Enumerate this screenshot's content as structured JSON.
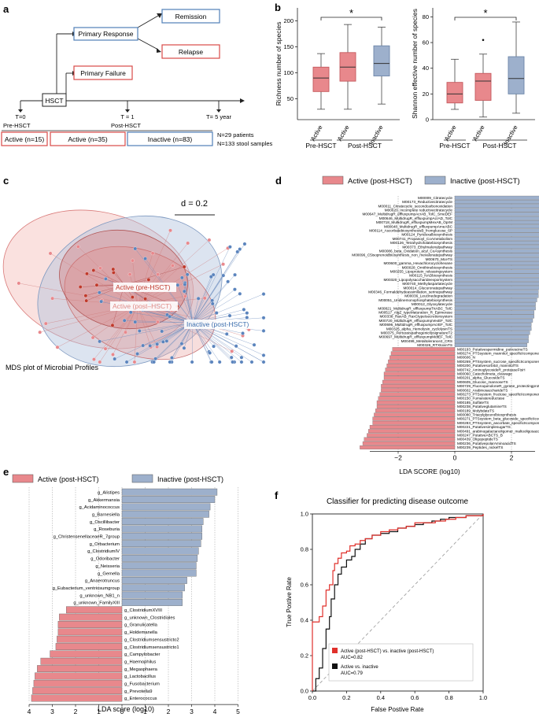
{
  "colors": {
    "active": "#e8888c",
    "inactive": "#9db0cc",
    "red": "#d84a48",
    "blue": "#4f7fb8",
    "gray": "#999999"
  },
  "panel_labels": {
    "a": "a",
    "b": "b",
    "c": "c",
    "d": "d",
    "e": "e",
    "f": "f"
  },
  "panel_a": {
    "nodes": {
      "remission": "Remission",
      "primary_response": "Primary Response",
      "relapse": "Relapse",
      "primary_failure": "Primary Failure",
      "hsct": "HSCT"
    },
    "times": {
      "t0": "T=0",
      "t1": "T = 1",
      "t5": "T= 5 year"
    },
    "periods": {
      "pre": "Pre-HSCT",
      "post": "Post-HSCT"
    },
    "groups": {
      "active_pre": "Active (n=15)",
      "active_post": "Active (n=35)",
      "inactive_post": "Inactive (n=83)"
    },
    "counts": {
      "patients": "N=29 patients",
      "samples": "N=133 stool samples"
    }
  },
  "chart_data": [
    {
      "id": "richness",
      "type": "box",
      "title": "",
      "ylabel": "Richness number of species",
      "ylim": [
        10,
        225
      ],
      "yticks": [
        50,
        100,
        150,
        200
      ],
      "categories": [
        "Active",
        "Active",
        "Inactive"
      ],
      "groups": [
        "Pre-HSCT",
        "Post-HSCT"
      ],
      "boxes": [
        {
          "name": "Active",
          "group": "Pre-HSCT",
          "min": 30,
          "q1": 64,
          "median": 90,
          "q3": 111,
          "max": 137,
          "outliers": []
        },
        {
          "name": "Active",
          "group": "Post-HSCT",
          "min": 30,
          "q1": 84,
          "median": 111,
          "q3": 139,
          "max": 193,
          "outliers": []
        },
        {
          "name": "Inactive",
          "group": "Post-HSCT",
          "min": 40,
          "q1": 94,
          "median": 118,
          "q3": 152,
          "max": 188,
          "outliers": []
        }
      ],
      "significance": "*"
    },
    {
      "id": "shannon",
      "type": "box",
      "title": "",
      "ylabel": "Shannon effective number of species",
      "ylim": [
        0,
        87
      ],
      "yticks": [
        0,
        20,
        40,
        60,
        80
      ],
      "categories": [
        "Active",
        "Active",
        "Inactive"
      ],
      "groups": [
        "Pre-HSCT",
        "Post-HSCT"
      ],
      "boxes": [
        {
          "name": "Active",
          "group": "Pre-HSCT",
          "min": 8,
          "q1": 13,
          "median": 20,
          "q3": 29,
          "max": 47,
          "outliers": []
        },
        {
          "name": "Active",
          "group": "Post-HSCT",
          "min": 2,
          "q1": 15,
          "median": 30,
          "q3": 36,
          "max": 51,
          "outliers": [
            62
          ]
        },
        {
          "name": "Inactive",
          "group": "Post-HSCT",
          "min": 5,
          "q1": 20,
          "median": 32,
          "q3": 49,
          "max": 76,
          "outliers": []
        }
      ],
      "significance": "*"
    },
    {
      "id": "mds",
      "type": "scatter",
      "title": "MDS plot of Microbial Profiles",
      "scale_label": "d = 0.2",
      "groups": [
        "Active (pre-HSCT)",
        "Active (post–HSCT)",
        "Inactive (post-HSCT)"
      ]
    },
    {
      "id": "lefse_pathways",
      "type": "bar",
      "xlabel": "LDA SCORE (log10)",
      "xticks": [
        -2,
        0,
        2
      ],
      "xlim": [
        -3.6,
        3.6
      ],
      "legend": [
        "Active (post-HSCT)",
        "Inactive (post-HSCT)"
      ],
      "categories": [
        "M00009_Citratecycle",
        "M00173_Reductivecitratecycle",
        "M00011_Citratecycle_secondcarbonoxidation",
        "M00620_Incomplete reductivecitratecycle",
        "M00647_MultidrugR_effluxpumpAcrAB_TolC_SmeDEF",
        "M00646_MultidrugR_effluxpumpAcrAD_TolC",
        "M00718_MultidrugR_effluxpumpMexAB_OprM",
        "M00648_MultidrugR_effluxpumpAmeABC",
        "M00114_AscorbatebiosynthesisB_fromglucose_6P",
        "M00124_Pyridoxalbiosynthesis",
        "M00741_Propanoyl_CoAmetabolism",
        "M00126_Tetrahydrofolatebiosynthesis",
        "M00373_Ethylmalonylpathway",
        "M00086_beta_Oxidation_acyl_CoAsynthesis",
        "M00096_C5isoprenoidbiosynthesis_non_mevalonatepathway",
        "M00670_MceTS",
        "M00600_gamma_Hexachlorocyclohexane",
        "M00028_Ornithinebiosynthesis",
        "M00255_Lipoprotein_releasingsystem",
        "M00115_NADbiosynthesis",
        "M00320_Lipopolysaccharideexportsystem",
        "M00740_Methylaspartatecycle",
        "M00014_Glucuronatepathway",
        "M00346_Formaldehydeassimilation_serinepathway",
        "M00036_Leucinedegradation",
        "M00051_Uridinemonophosphatebiosynthesis",
        "M00012_Glyoxylatecycle",
        "M00821_MultidrugR_effluxpumpTriABC_TolC",
        "M00517_AlgZ_typeMaturation_R_Epimerase",
        "M00338_RaxAB_RaxCtypeIsecretionsystem",
        "M00720_MultidrugR_effluxpumpVexEF_TolC",
        "M00696_MultidrugR_effluxpumpAcrEF_TolC",
        "M00325_alpha_Hemolysin_cyclolysinTS",
        "M00375_PertussispathogenicitysignatureT2",
        "M00697_MultidrugR_effluxpumpMdtEF_TolC",
        "M00499_Metaltolerance2_CRS",
        "M00326_RTXtoxinTS",
        "M00193_Putativespermidine_putrescineTS",
        "M00274_PTSsystem_mannitol_specificIIcomponent",
        "M00606_N",
        "M00269_PTSsystem_sucrose_specificIIcomponent",
        "M00200_Putativesorbitol_mannitolTS",
        "M00742_AminoglycosideR_proteaseFtsH",
        "M00060_Catecholmeta_cleavage",
        "M00201_alpha_GlucosideTS",
        "M00605_Glucose_mannoseTS",
        "M00729_FluoroquinoloneR_gyrase_protectingproteinQnr",
        "M00602_ArabinosaccharideTS",
        "M00273_PTSsystem_fructose_specificIIcomponent_A",
        "M00150_Fumaratereductase",
        "M00185_SulfateTS",
        "M00238_PutativeglutamineTS",
        "M00189_MolybdateTS",
        "M00080_Triacylglycerolbiosynthesis",
        "M00271_PTSsystem_beta_glucoside_specificIIcomponent_B",
        "M00283_PTSsystem_ascorbate_specificIIcomponent",
        "M00221_PutativesimplesugarTS",
        "M00491_arabinogalactanoligomer_maltooligosaccharideTS",
        "M00247_PutativeABCTS_B",
        "M00439_OligopeptideTS",
        "M00236_PutativepolarAminoacidTS",
        "M00239_Peptides_nickelTS"
      ],
      "values": [
        4.1,
        4.05,
        4.0,
        3.95,
        3.85,
        3.7,
        3.7,
        3.6,
        3.55,
        3.5,
        3.45,
        3.4,
        3.4,
        3.35,
        3.3,
        3.2,
        3.2,
        3.15,
        3.1,
        3.1,
        3.05,
        3.0,
        3.0,
        2.95,
        2.95,
        2.9,
        2.85,
        2.85,
        2.8,
        2.8,
        2.75,
        2.7,
        2.7,
        2.65,
        2.6,
        2.6,
        2.55,
        -2.2,
        -2.25,
        -2.3,
        -2.35,
        -2.4,
        -2.45,
        -2.5,
        -2.5,
        -2.55,
        -2.6,
        -2.6,
        -2.65,
        -2.7,
        -2.75,
        -2.75,
        -2.8,
        -2.85,
        -2.9,
        -2.9,
        -3.0,
        -3.05,
        -3.1,
        -3.2,
        -3.25,
        -3.35
      ]
    },
    {
      "id": "lefse_taxa",
      "type": "bar",
      "xlabel": "LDA score (log10)",
      "xticks": [
        "4",
        "3",
        "2",
        "1",
        "0",
        "1",
        "2",
        "3",
        "4",
        "5"
      ],
      "xlim": [
        -4,
        5
      ],
      "legend": [
        "Active (post-HSCT)",
        "Inactive (post-HSCT)"
      ],
      "categories": [
        "g_Alistipes",
        "g_Akkermansia",
        "g_Acidaminococcus",
        "g_Barnesiella",
        "g_Oscillibacter",
        "g_Roseburia",
        "g_ChristensenellaceaeR_7group",
        "g_Orbacterium",
        "g_ClostridiumIV",
        "g_Odoribacter",
        "g_Neisseria",
        "g_Gemella",
        "g_Anaerotruncus",
        "g_Eubacterium_ventriosumgroup",
        "g_unknown_NB1_n",
        "g_unknown_FamilyXIII",
        "g_ClostridiumXVIII",
        "g_unknown_Clostridiales",
        "g_Granulicatella",
        "g_Holdemanella",
        "g_Clostridiumsensustricto2",
        "g_Clostridiumsensustricto1",
        "g_Campylobacter",
        "g_Haemophilus",
        "g_Megasphaera",
        "g_Lactobacillus",
        "g_Fusobacterium",
        "g_Prevotella9",
        "g_Enterococcus"
      ],
      "values": [
        4.1,
        4.0,
        3.8,
        3.75,
        3.5,
        3.45,
        3.45,
        3.4,
        3.3,
        3.25,
        3.2,
        3.2,
        2.8,
        2.7,
        2.6,
        2.6,
        -2.4,
        -2.7,
        -2.75,
        -2.75,
        -2.8,
        -2.85,
        -3.1,
        -3.5,
        -3.65,
        -3.75,
        -3.8,
        -3.85,
        -3.9
      ]
    },
    {
      "id": "roc",
      "type": "line",
      "title": "Classifier for predicting disease outcome",
      "xlabel": "False Postive Rate",
      "ylabel": "True Postive Rate",
      "xlim": [
        0,
        1
      ],
      "ylim": [
        0,
        1
      ],
      "xticks": [
        "0.0",
        "0.2",
        "0.4",
        "0.6",
        "0.8",
        "1.0"
      ],
      "yticks": [
        "0.0",
        "0.2",
        "0.4",
        "0.6",
        "0.8",
        "1.0"
      ],
      "series": [
        {
          "name": "Active (post-HSCT) vs. inactive (post-HSCT)",
          "auc": "AUC=0.82",
          "x": [
            0,
            0,
            0.04,
            0.06,
            0.08,
            0.1,
            0.12,
            0.13,
            0.15,
            0.17,
            0.2,
            0.22,
            0.25,
            0.28,
            0.31,
            0.35,
            0.4,
            0.45,
            0.5,
            0.55,
            0.6,
            0.66,
            0.72,
            0.78,
            0.84,
            0.9,
            1.0
          ],
          "y": [
            0,
            0.39,
            0.42,
            0.48,
            0.57,
            0.6,
            0.68,
            0.72,
            0.75,
            0.78,
            0.79,
            0.82,
            0.83,
            0.85,
            0.86,
            0.88,
            0.9,
            0.91,
            0.92,
            0.93,
            0.95,
            0.95,
            0.96,
            0.97,
            0.98,
            0.99,
            1.0
          ]
        },
        {
          "name": "Active  vs. inactive",
          "auc": "AUC=0.79",
          "x": [
            0,
            0.02,
            0.04,
            0.06,
            0.08,
            0.1,
            0.11,
            0.13,
            0.15,
            0.17,
            0.2,
            0.23,
            0.25,
            0.28,
            0.31,
            0.35,
            0.4,
            0.45,
            0.5,
            0.55,
            0.6,
            0.65,
            0.7,
            0.75,
            0.8,
            0.9,
            1.0
          ],
          "y": [
            0,
            0.07,
            0.13,
            0.24,
            0.35,
            0.42,
            0.52,
            0.6,
            0.66,
            0.7,
            0.74,
            0.76,
            0.8,
            0.83,
            0.86,
            0.88,
            0.89,
            0.9,
            0.92,
            0.93,
            0.94,
            0.95,
            0.96,
            0.97,
            0.98,
            0.99,
            1.0
          ]
        },
        {
          "name": "chance",
          "auc": "",
          "x": [
            0,
            1
          ],
          "y": [
            0,
            1
          ]
        }
      ]
    }
  ]
}
